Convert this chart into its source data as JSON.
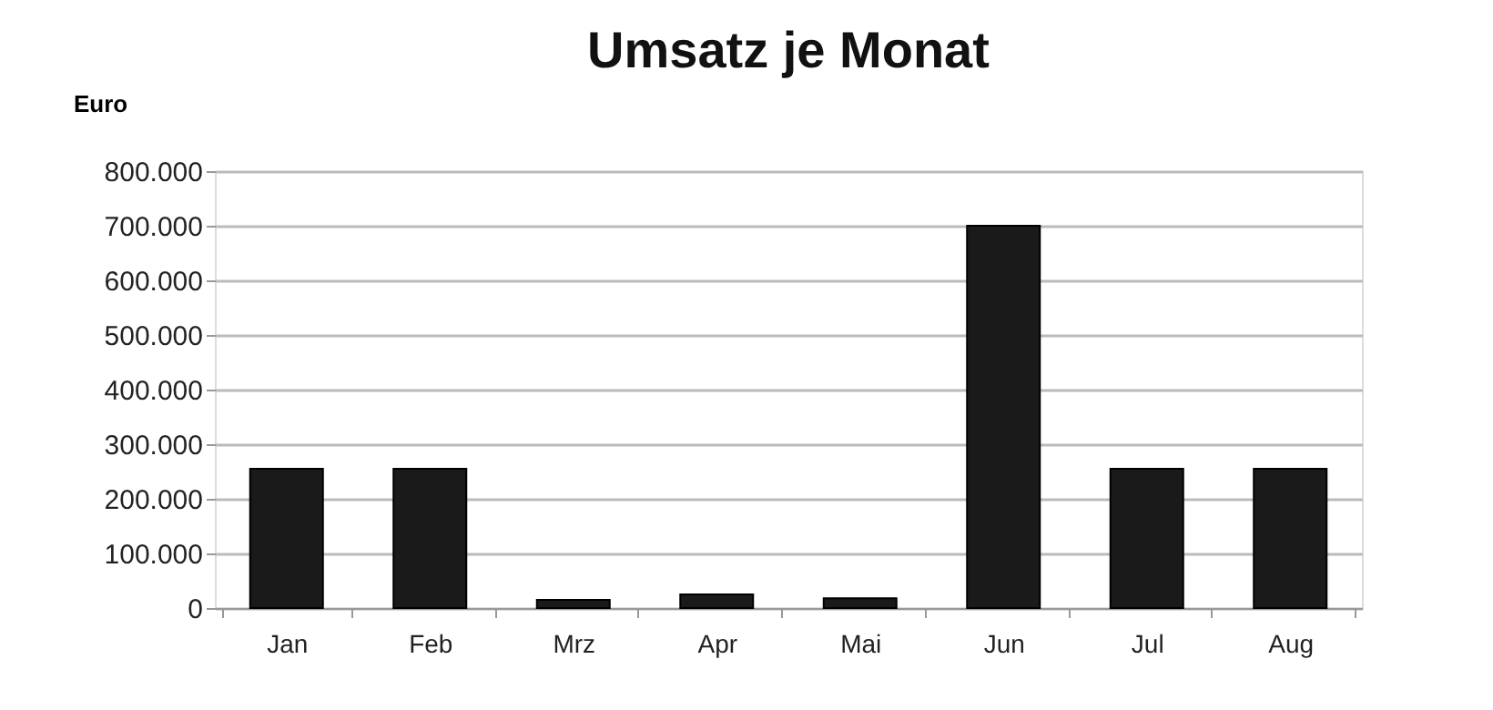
{
  "chart_data": {
    "type": "bar",
    "title": "Umsatz je Monat",
    "ylabel": "Euro",
    "categories": [
      "Jan",
      "Feb",
      "Mrz",
      "Apr",
      "Mai",
      "Jun",
      "Jul",
      "Aug"
    ],
    "values": [
      255000,
      255000,
      15000,
      25000,
      18000,
      700000,
      255000,
      255000
    ],
    "color": "#1a1a1a",
    "ylim": [
      0,
      800000
    ],
    "yticks": [
      {
        "value": 0,
        "label": "0"
      },
      {
        "value": 100000,
        "label": "100.000"
      },
      {
        "value": 200000,
        "label": "200.000"
      },
      {
        "value": 300000,
        "label": "300.000"
      },
      {
        "value": 400000,
        "label": "400.000"
      },
      {
        "value": 500000,
        "label": "500.000"
      },
      {
        "value": 600000,
        "label": "600.000"
      },
      {
        "value": 700000,
        "label": "700.000"
      },
      {
        "value": 800000,
        "label": "800.000"
      }
    ],
    "grid": "y"
  }
}
